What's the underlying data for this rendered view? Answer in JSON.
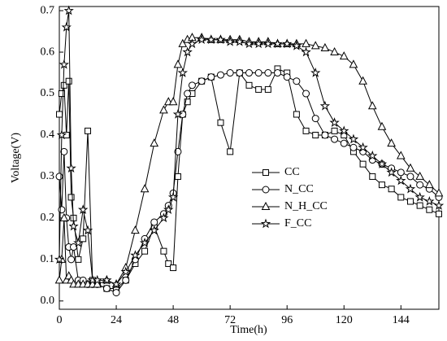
{
  "chart_data": {
    "type": "line",
    "x_label": "Time(h)",
    "y_label": "Voltage(V)",
    "x": [
      0,
      1,
      2,
      3,
      4,
      5,
      6,
      8,
      10,
      12,
      14,
      16,
      20,
      24,
      28,
      32,
      36,
      40,
      44,
      46,
      48,
      50,
      52,
      54,
      56,
      60,
      64,
      68,
      72,
      76,
      80,
      84,
      88,
      92,
      96,
      100,
      104,
      108,
      112,
      116,
      120,
      124,
      128,
      132,
      136,
      140,
      144,
      148,
      152,
      156,
      160
    ],
    "series": [
      {
        "name": "CC",
        "marker": "square",
        "color": "#000000",
        "values": [
          0.45,
          0.5,
          0.52,
          0.4,
          0.53,
          0.25,
          0.2,
          0.1,
          0.15,
          0.41,
          0.05,
          0.04,
          0.03,
          0.03,
          0.05,
          0.09,
          0.12,
          0.18,
          0.12,
          0.09,
          0.08,
          0.3,
          0.45,
          0.48,
          0.5,
          0.53,
          0.54,
          0.43,
          0.36,
          0.55,
          0.52,
          0.51,
          0.51,
          0.56,
          0.55,
          0.45,
          0.41,
          0.4,
          0.4,
          0.41,
          0.4,
          0.36,
          0.33,
          0.3,
          0.28,
          0.27,
          0.25,
          0.24,
          0.23,
          0.22,
          0.21
        ]
      },
      {
        "name": "N_CC",
        "marker": "circle",
        "color": "#000000",
        "values": [
          0.3,
          0.22,
          0.36,
          0.2,
          0.13,
          0.1,
          0.13,
          0.05,
          0.05,
          0.04,
          0.04,
          0.04,
          0.03,
          0.02,
          0.05,
          0.1,
          0.15,
          0.19,
          0.21,
          0.23,
          0.26,
          0.36,
          0.45,
          0.5,
          0.52,
          0.53,
          0.54,
          0.545,
          0.55,
          0.55,
          0.55,
          0.55,
          0.55,
          0.55,
          0.54,
          0.53,
          0.5,
          0.44,
          0.4,
          0.39,
          0.38,
          0.37,
          0.36,
          0.34,
          0.33,
          0.32,
          0.31,
          0.3,
          0.28,
          0.27,
          0.25
        ]
      },
      {
        "name": "N_H_CC",
        "marker": "triangle",
        "color": "#000000",
        "values": [
          0.05,
          0.1,
          0.2,
          0.05,
          0.06,
          0.05,
          0.04,
          0.04,
          0.04,
          0.04,
          0.04,
          0.04,
          0.05,
          0.04,
          0.08,
          0.17,
          0.27,
          0.38,
          0.46,
          0.48,
          0.48,
          0.57,
          0.62,
          0.63,
          0.635,
          0.635,
          0.63,
          0.63,
          0.63,
          0.63,
          0.625,
          0.625,
          0.625,
          0.62,
          0.62,
          0.62,
          0.62,
          0.615,
          0.61,
          0.6,
          0.59,
          0.57,
          0.53,
          0.47,
          0.42,
          0.38,
          0.35,
          0.32,
          0.3,
          0.28,
          0.26
        ]
      },
      {
        "name": "F_CC",
        "marker": "star",
        "color": "#000000",
        "values": [
          0.1,
          0.4,
          0.57,
          0.66,
          0.7,
          0.32,
          0.18,
          0.14,
          0.22,
          0.17,
          0.05,
          0.05,
          0.05,
          0.04,
          0.07,
          0.11,
          0.14,
          0.17,
          0.2,
          0.22,
          0.25,
          0.45,
          0.55,
          0.6,
          0.62,
          0.63,
          0.63,
          0.63,
          0.625,
          0.625,
          0.62,
          0.62,
          0.62,
          0.62,
          0.62,
          0.615,
          0.6,
          0.55,
          0.47,
          0.43,
          0.41,
          0.39,
          0.37,
          0.35,
          0.33,
          0.31,
          0.29,
          0.27,
          0.25,
          0.24,
          0.23
        ]
      }
    ],
    "xlim": [
      0,
      160
    ],
    "xticks": [
      0,
      24,
      48,
      72,
      96,
      120,
      144
    ],
    "ylim": [
      -0.02,
      0.71
    ],
    "yticks": [
      {
        "value": 0,
        "label": "0.0"
      },
      0.1,
      0.2,
      0.3,
      0.4,
      0.5,
      0.6,
      0.7
    ],
    "legend_position": "center",
    "grid": false
  }
}
